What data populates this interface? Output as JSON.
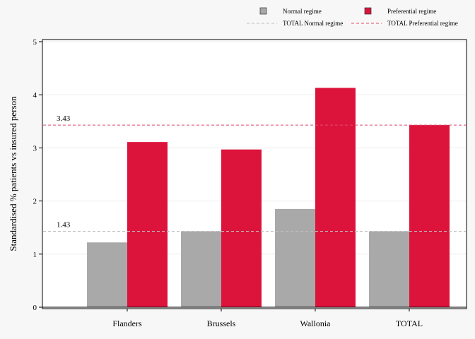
{
  "chart_data": {
    "type": "bar",
    "categories": [
      "Flanders",
      "Brussels",
      "Wallonia",
      "TOTAL"
    ],
    "series": [
      {
        "name": "Normal regime",
        "values": [
          1.22,
          1.43,
          1.85,
          1.43
        ],
        "color": "#a9a9a9"
      },
      {
        "name": "Preferential regime",
        "values": [
          3.11,
          2.97,
          4.13,
          3.43
        ],
        "color": "#dc143c"
      }
    ],
    "reference_lines": [
      {
        "name": "TOTAL Normal regime",
        "value": 1.43,
        "label": "1.43",
        "color": "#bdbdbd",
        "style": "dashed"
      },
      {
        "name": "TOTAL Preferential regime",
        "value": 3.43,
        "label": "3.43",
        "color": "#e0486a",
        "style": "dashed"
      }
    ],
    "ylabel": "Standardised % patients vs insured person",
    "xlabel": "",
    "ylim": [
      0,
      5
    ],
    "yticks": [
      "0",
      "1",
      "2",
      "3",
      "4",
      "5"
    ],
    "grid": true,
    "legend_position": "top-right"
  }
}
